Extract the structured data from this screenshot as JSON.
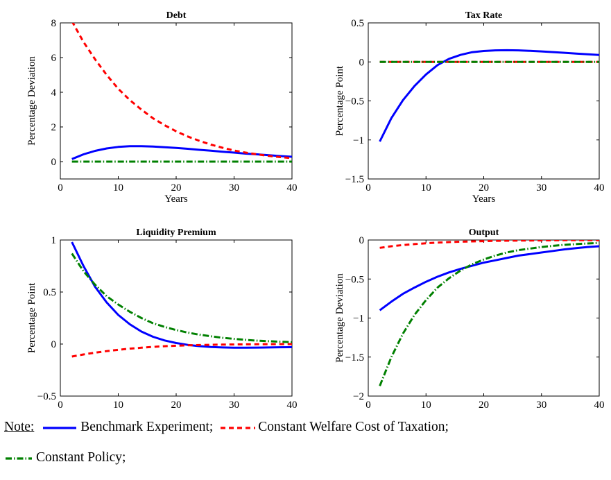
{
  "colors": {
    "benchmark": "#0000ff",
    "welfare": "#ff0000",
    "constant": "#008000"
  },
  "chart_data": [
    {
      "type": "line",
      "title": "Debt",
      "xlabel": "Years",
      "ylabel": "Percentage Deviation",
      "xlim": [
        0,
        40
      ],
      "ylim": [
        -1,
        8
      ],
      "xticks": [
        "0",
        "10",
        "20",
        "30",
        "40"
      ],
      "yticks": [
        "0",
        "2",
        "4",
        "6",
        "8"
      ],
      "series": [
        {
          "key": "benchmark",
          "x": [
            2,
            4,
            6,
            8,
            10,
            12,
            14,
            16,
            18,
            20,
            22,
            24,
            26,
            28,
            30,
            32,
            34,
            36,
            38,
            40
          ],
          "y": [
            0.15,
            0.42,
            0.62,
            0.76,
            0.85,
            0.89,
            0.89,
            0.87,
            0.83,
            0.79,
            0.74,
            0.68,
            0.63,
            0.57,
            0.52,
            0.46,
            0.42,
            0.37,
            0.32,
            0.28
          ]
        },
        {
          "key": "welfare",
          "x": [
            2,
            4,
            6,
            8,
            10,
            12,
            14,
            16,
            18,
            20,
            22,
            24,
            26,
            28,
            30,
            32,
            34,
            36,
            38,
            40
          ],
          "y": [
            8.1,
            6.9,
            5.9,
            5.0,
            4.2,
            3.55,
            3.0,
            2.5,
            2.1,
            1.75,
            1.45,
            1.2,
            0.98,
            0.8,
            0.64,
            0.52,
            0.42,
            0.33,
            0.26,
            0.2
          ]
        },
        {
          "key": "constant",
          "x": [
            2,
            40
          ],
          "y": [
            0,
            0
          ]
        }
      ]
    },
    {
      "type": "line",
      "title": "Tax Rate",
      "xlabel": "Years",
      "ylabel": "Percentage Point",
      "xlim": [
        0,
        40
      ],
      "ylim": [
        -1.5,
        0.5
      ],
      "xticks": [
        "0",
        "10",
        "20",
        "30",
        "40"
      ],
      "yticks": [
        "−1.5",
        "−1",
        "−0.5",
        "0",
        "0.5"
      ],
      "series": [
        {
          "key": "benchmark",
          "x": [
            2,
            4,
            6,
            8,
            10,
            12,
            14,
            16,
            18,
            20,
            22,
            24,
            26,
            28,
            30,
            32,
            34,
            36,
            38,
            40
          ],
          "y": [
            -1.02,
            -0.72,
            -0.49,
            -0.31,
            -0.16,
            -0.04,
            0.04,
            0.09,
            0.125,
            0.14,
            0.148,
            0.15,
            0.148,
            0.142,
            0.135,
            0.126,
            0.117,
            0.107,
            0.097,
            0.088
          ]
        },
        {
          "key": "welfare",
          "x": [
            2,
            40
          ],
          "y": [
            0,
            0
          ]
        },
        {
          "key": "constant",
          "x": [
            2,
            40
          ],
          "y": [
            0,
            0
          ]
        }
      ]
    },
    {
      "type": "line",
      "title": "Liquidity Premium",
      "xlabel": "Years",
      "ylabel": "Percentage Point",
      "xlim": [
        0,
        40
      ],
      "ylim": [
        -0.5,
        1
      ],
      "xticks": [
        "0",
        "10",
        "20",
        "30",
        "40"
      ],
      "yticks": [
        "−0.5",
        "0",
        "0.5",
        "1"
      ],
      "series": [
        {
          "key": "benchmark",
          "x": [
            2,
            4,
            6,
            8,
            10,
            12,
            14,
            16,
            18,
            20,
            22,
            24,
            26,
            28,
            30,
            32,
            34,
            36,
            38,
            40
          ],
          "y": [
            0.98,
            0.75,
            0.55,
            0.4,
            0.28,
            0.19,
            0.12,
            0.07,
            0.035,
            0.01,
            -0.008,
            -0.02,
            -0.028,
            -0.033,
            -0.035,
            -0.035,
            -0.034,
            -0.033,
            -0.031,
            -0.03
          ]
        },
        {
          "key": "welfare",
          "x": [
            2,
            4,
            6,
            8,
            10,
            12,
            14,
            16,
            18,
            20,
            22,
            24,
            26,
            28,
            30,
            32,
            34,
            36,
            38,
            40
          ],
          "y": [
            -0.12,
            -0.1,
            -0.083,
            -0.068,
            -0.055,
            -0.044,
            -0.035,
            -0.027,
            -0.021,
            -0.016,
            -0.012,
            -0.009,
            -0.007,
            -0.005,
            -0.004,
            -0.003,
            -0.002,
            -0.002,
            -0.001,
            -0.001
          ]
        },
        {
          "key": "constant",
          "x": [
            2,
            4,
            6,
            8,
            10,
            12,
            14,
            16,
            18,
            20,
            22,
            24,
            26,
            28,
            30,
            32,
            34,
            36,
            38,
            40
          ],
          "y": [
            0.87,
            0.7,
            0.57,
            0.46,
            0.38,
            0.31,
            0.25,
            0.2,
            0.165,
            0.135,
            0.11,
            0.09,
            0.075,
            0.06,
            0.05,
            0.04,
            0.033,
            0.027,
            0.022,
            0.018
          ]
        }
      ]
    },
    {
      "type": "line",
      "title": "Output",
      "xlabel": "Years",
      "ylabel": "Percentage Deviation",
      "xlim": [
        0,
        40
      ],
      "ylim": [
        -2,
        0
      ],
      "xticks": [
        "0",
        "10",
        "20",
        "30",
        "40"
      ],
      "yticks": [
        "−2",
        "−1.5",
        "−1",
        "−0.5",
        "0"
      ],
      "series": [
        {
          "key": "benchmark",
          "x": [
            2,
            4,
            6,
            8,
            10,
            12,
            14,
            16,
            18,
            20,
            22,
            24,
            26,
            28,
            30,
            32,
            34,
            36,
            38,
            40
          ],
          "y": [
            -0.9,
            -0.79,
            -0.69,
            -0.61,
            -0.535,
            -0.47,
            -0.415,
            -0.37,
            -0.33,
            -0.29,
            -0.26,
            -0.23,
            -0.2,
            -0.18,
            -0.16,
            -0.14,
            -0.12,
            -0.105,
            -0.09,
            -0.08
          ]
        },
        {
          "key": "welfare",
          "x": [
            2,
            4,
            6,
            8,
            10,
            12,
            14,
            16,
            18,
            20,
            22,
            24,
            26,
            28,
            30,
            32,
            34,
            36,
            38,
            40
          ],
          "y": [
            -0.1,
            -0.08,
            -0.065,
            -0.052,
            -0.042,
            -0.034,
            -0.027,
            -0.022,
            -0.018,
            -0.014,
            -0.011,
            -0.009,
            -0.007,
            -0.006,
            -0.005,
            -0.004,
            -0.003,
            -0.003,
            -0.002,
            -0.002
          ]
        },
        {
          "key": "constant",
          "x": [
            2,
            4,
            6,
            8,
            10,
            12,
            14,
            16,
            18,
            20,
            22,
            24,
            26,
            28,
            30,
            32,
            34,
            36,
            38,
            40
          ],
          "y": [
            -1.87,
            -1.5,
            -1.2,
            -0.96,
            -0.77,
            -0.61,
            -0.49,
            -0.39,
            -0.31,
            -0.25,
            -0.2,
            -0.16,
            -0.13,
            -0.11,
            -0.09,
            -0.075,
            -0.062,
            -0.052,
            -0.044,
            -0.038
          ]
        }
      ]
    }
  ],
  "legend": {
    "note": "Note:",
    "items": [
      {
        "key": "benchmark",
        "label": "Benchmark Experiment;"
      },
      {
        "key": "welfare",
        "label": "Constant Welfare Cost of Taxation;"
      },
      {
        "key": "constant",
        "label": "Constant Policy;"
      }
    ]
  }
}
